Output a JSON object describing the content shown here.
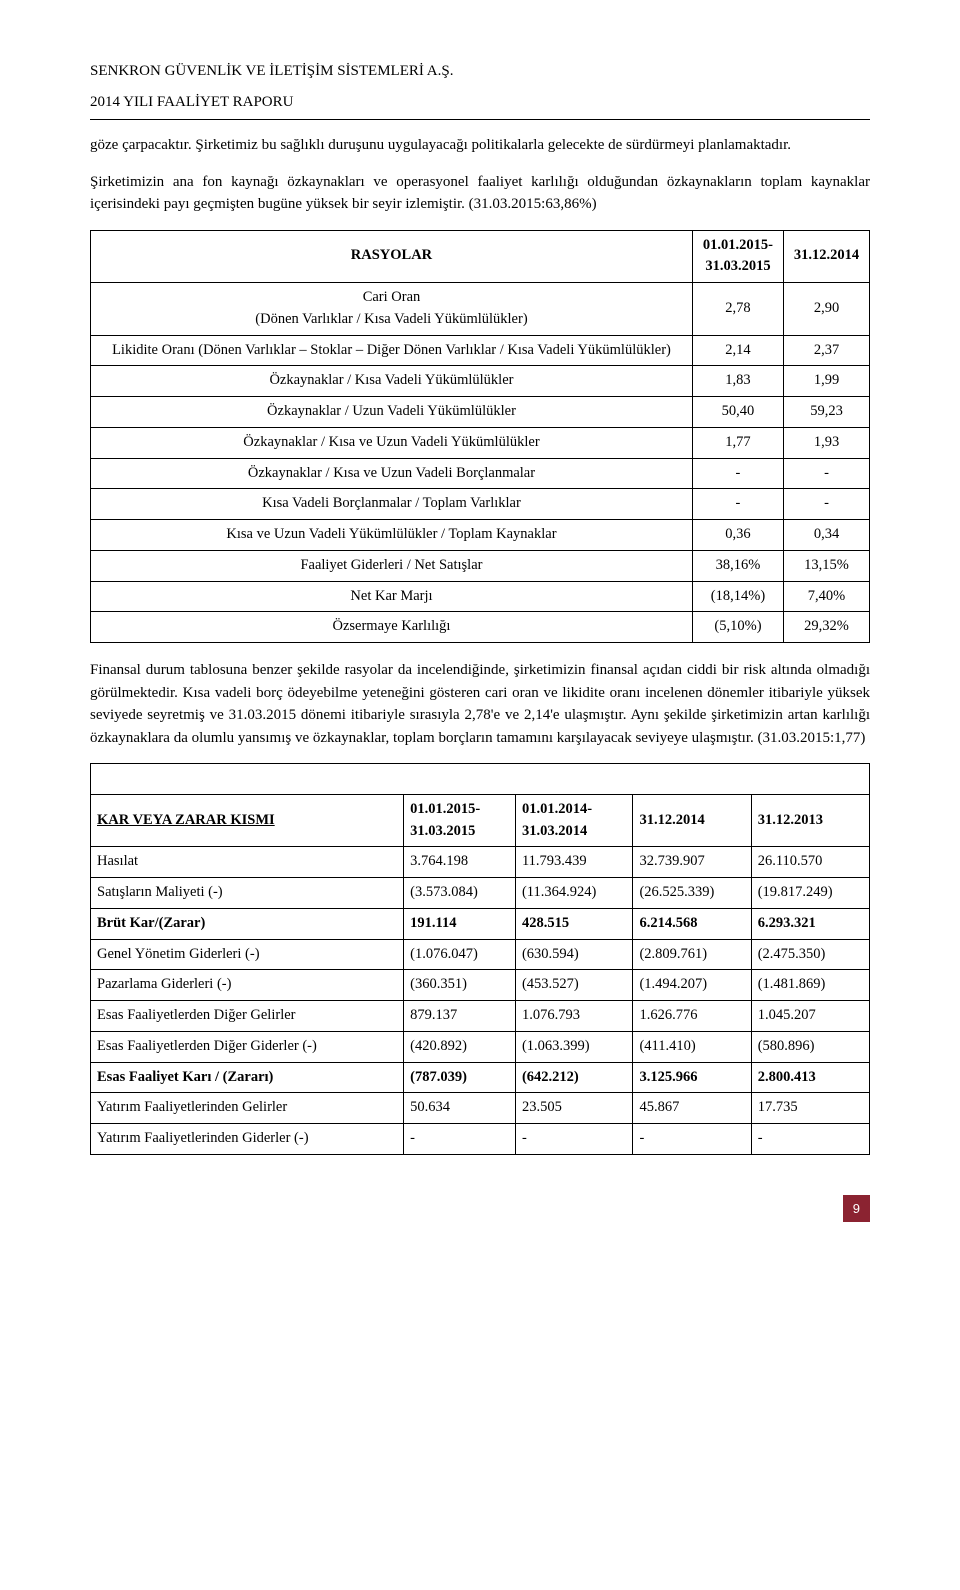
{
  "header": {
    "company": "SENKRON GÜVENLİK VE İLETİŞİM SİSTEMLERİ A.Ş.",
    "report": "2014 YILI FAALİYET RAPORU"
  },
  "para1": "göze çarpacaktır. Şirketimiz bu sağlıklı duruşunu uygulayacağı politikalarla gelecekte de sürdürmeyi planlamaktadır.",
  "para2": "Şirketimizin ana fon kaynağı özkaynakları ve operasyonel faaliyet karlılığı olduğundan özkaynakların toplam kaynaklar içerisindeki payı geçmişten bugüne yüksek bir seyir izlemiştir. (31.03.2015:63,86%)",
  "ratioTable": {
    "header": {
      "title": "RASYOLAR",
      "col1": "01.01.2015-31.03.2015",
      "col2": "31.12.2014"
    },
    "rows": [
      {
        "label": "Cari Oran\n(Dönen Varlıklar / Kısa Vadeli Yükümlülükler)",
        "v1": "2,78",
        "v2": "2,90"
      },
      {
        "label": "Likidite Oranı (Dönen Varlıklar – Stoklar – Diğer Dönen Varlıklar / Kısa Vadeli Yükümlülükler)",
        "v1": "2,14",
        "v2": "2,37"
      },
      {
        "label": "Özkaynaklar / Kısa Vadeli Yükümlülükler",
        "v1": "1,83",
        "v2": "1,99"
      },
      {
        "label": "Özkaynaklar / Uzun Vadeli Yükümlülükler",
        "v1": "50,40",
        "v2": "59,23"
      },
      {
        "label": "Özkaynaklar / Kısa ve Uzun Vadeli Yükümlülükler",
        "v1": "1,77",
        "v2": "1,93"
      },
      {
        "label": "Özkaynaklar / Kısa ve Uzun Vadeli Borçlanmalar",
        "v1": "-",
        "v2": "-"
      },
      {
        "label": "Kısa Vadeli Borçlanmalar / Toplam Varlıklar",
        "v1": "-",
        "v2": "-"
      },
      {
        "label": "Kısa ve Uzun Vadeli Yükümlülükler / Toplam Kaynaklar",
        "v1": "0,36",
        "v2": "0,34"
      },
      {
        "label": "Faaliyet Giderleri / Net Satışlar",
        "v1": "38,16%",
        "v2": "13,15%"
      },
      {
        "label": "Net Kar Marjı",
        "v1": "(18,14%)",
        "v2": "7,40%"
      },
      {
        "label": "Özsermaye Karlılığı",
        "v1": "(5,10%)",
        "v2": "29,32%"
      }
    ]
  },
  "para3": "Finansal durum tablosuna benzer şekilde rasyolar da incelendiğinde, şirketimizin finansal açıdan ciddi bir risk altında olmadığı görülmektedir. Kısa vadeli borç ödeyebilme yeteneğini gösteren cari oran ve likidite oranı incelenen dönemler itibariyle yüksek seviyede seyretmiş ve 31.03.2015 dönemi itibariyle sırasıyla 2,78'e ve 2,14'e ulaşmıştır. Aynı şekilde şirketimizin artan karlılığı özkaynaklara da olumlu yansımış ve özkaynaklar, toplam borçların tamamını karşılayacak seviyeye ulaşmıştır. (31.03.2015:1,77)",
  "karTable": {
    "header": {
      "title": "KAR VEYA ZARAR KISMI",
      "c1": "01.01.2015-31.03.2015",
      "c2": "01.01.2014-31.03.2014",
      "c3": "31.12.2014",
      "c4": "31.12.2013"
    },
    "rows": [
      {
        "label": "Hasılat",
        "v1": "3.764.198",
        "v2": "11.793.439",
        "v3": "32.739.907",
        "v4": "26.110.570",
        "bold": false
      },
      {
        "label": "Satışların Maliyeti (-)",
        "v1": "(3.573.084)",
        "v2": "(11.364.924)",
        "v3": "(26.525.339)",
        "v4": "(19.817.249)",
        "bold": false
      },
      {
        "label": "Brüt Kar/(Zarar)",
        "v1": "191.114",
        "v2": "428.515",
        "v3": "6.214.568",
        "v4": "6.293.321",
        "bold": true
      },
      {
        "label": "Genel Yönetim Giderleri (-)",
        "v1": "(1.076.047)",
        "v2": "(630.594)",
        "v3": "(2.809.761)",
        "v4": "(2.475.350)",
        "bold": false
      },
      {
        "label": "Pazarlama Giderleri (-)",
        "v1": "(360.351)",
        "v2": "(453.527)",
        "v3": "(1.494.207)",
        "v4": "(1.481.869)",
        "bold": false
      },
      {
        "label": "Esas Faaliyetlerden Diğer Gelirler",
        "v1": "879.137",
        "v2": "1.076.793",
        "v3": "1.626.776",
        "v4": "1.045.207",
        "bold": false
      },
      {
        "label": "Esas Faaliyetlerden Diğer Giderler (-)",
        "v1": "(420.892)",
        "v2": "(1.063.399)",
        "v3": "(411.410)",
        "v4": "(580.896)",
        "bold": false
      },
      {
        "label": "Esas Faaliyet Karı / (Zararı)",
        "v1": "(787.039)",
        "v2": "(642.212)",
        "v3": "3.125.966",
        "v4": "2.800.413",
        "bold": true
      },
      {
        "label": "Yatırım Faaliyetlerinden Gelirler",
        "v1": "50.634",
        "v2": "23.505",
        "v3": "45.867",
        "v4": "17.735",
        "bold": false
      },
      {
        "label": "Yatırım Faaliyetlerinden Giderler (-)",
        "v1": "-",
        "v2": "-",
        "v3": "-",
        "v4": "-",
        "bold": false
      }
    ]
  },
  "pageNumber": "9",
  "colors": {
    "pageNumBg": "#8b2331",
    "pageNumFg": "#ffffff"
  }
}
